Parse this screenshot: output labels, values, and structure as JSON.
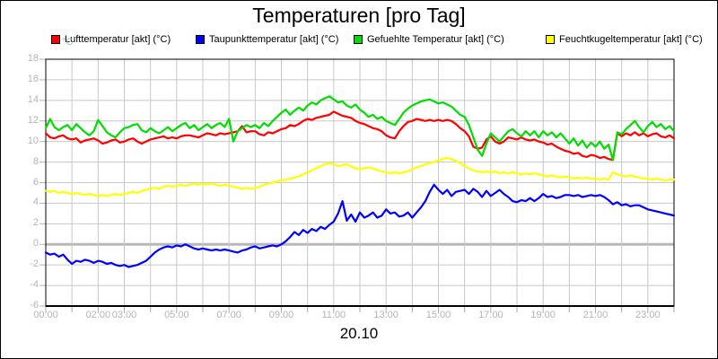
{
  "title": "Temperaturen [pro Tag]",
  "unit_label": "°C",
  "date_label": "20.10",
  "legend": {
    "items": [
      {
        "label": "Lufttemperatur [akt] (°C)",
        "color": "#ff0000"
      },
      {
        "label": "Taupunkttemperatur [akt] (°C)",
        "color": "#0000ff"
      },
      {
        "label": "Gefuehlte Temperatur [akt] (°C)",
        "color": "#00dd00"
      },
      {
        "label": "Feuchtkugeltemperatur [akt] (°C)",
        "color": "#ffff00"
      }
    ]
  },
  "axes": {
    "y_ticks": [
      18,
      16,
      14,
      12,
      10,
      8,
      6,
      4,
      2,
      0,
      -2,
      -4,
      -6
    ],
    "x_ticks": [
      {
        "hour": 0,
        "label": "00:00"
      },
      {
        "hour": 2,
        "label": "02:00"
      },
      {
        "hour": 3,
        "label": "03:00"
      },
      {
        "hour": 5,
        "label": "05:00"
      },
      {
        "hour": 7,
        "label": "07:00"
      },
      {
        "hour": 9,
        "label": "09:00"
      },
      {
        "hour": 11,
        "label": "11:00"
      },
      {
        "hour": 13,
        "label": "13:00"
      },
      {
        "hour": 15,
        "label": "15:00"
      },
      {
        "hour": 17,
        "label": "17:00"
      },
      {
        "hour": 19,
        "label": "19:00"
      },
      {
        "hour": 21,
        "label": "21:00"
      },
      {
        "hour": 23,
        "label": "23:00"
      }
    ]
  },
  "colors": {
    "grid": "#c8c8c8",
    "zero_line": "#b8b8b8",
    "axis_text": "#b4b4b4",
    "tick": "#a8a8a8",
    "border": "#000000"
  },
  "chart_data": {
    "type": "line",
    "title": "Temperaturen [pro Tag]",
    "xlabel": "20.10",
    "ylabel": "°C",
    "x_unit": "hour of day",
    "x_start_hour": 0,
    "x_step_minutes": 10,
    "xlim_hours": [
      0,
      24
    ],
    "ylim": [
      -6,
      18
    ],
    "grid": true,
    "legend_position": "top",
    "series": [
      {
        "name": "Lufttemperatur [akt] (°C)",
        "color": "#ff0000",
        "values": [
          10.8,
          10.4,
          10.3,
          10.5,
          10.6,
          10.3,
          10.2,
          10.3,
          9.9,
          10.1,
          10.2,
          10.3,
          10.1,
          9.8,
          9.9,
          10.1,
          10.2,
          9.9,
          10.0,
          10.2,
          10.3,
          10.0,
          9.8,
          10.0,
          10.2,
          10.3,
          10.4,
          10.5,
          10.3,
          10.4,
          10.3,
          10.5,
          10.6,
          10.6,
          10.5,
          10.4,
          10.6,
          10.8,
          10.7,
          10.6,
          10.8,
          10.7,
          10.8,
          10.9,
          11.0,
          11.5,
          10.9,
          11.0,
          11.0,
          10.7,
          10.6,
          10.9,
          10.8,
          11.0,
          11.2,
          11.3,
          11.6,
          11.5,
          11.7,
          12.0,
          12.2,
          12.1,
          12.3,
          12.4,
          12.5,
          12.6,
          12.9,
          12.7,
          12.5,
          12.4,
          12.3,
          12.0,
          11.8,
          11.7,
          11.5,
          11.3,
          11.2,
          11.0,
          10.6,
          10.4,
          10.3,
          11.0,
          11.5,
          11.9,
          12.0,
          12.2,
          12.1,
          12.0,
          12.1,
          12.0,
          12.1,
          12.0,
          12.1,
          12.0,
          11.7,
          11.3,
          11.0,
          10.5,
          9.5,
          9.3,
          9.4,
          10.2,
          10.5,
          10.0,
          9.8,
          10.0,
          10.4,
          10.3,
          10.2,
          10.4,
          10.2,
          10.1,
          10.2,
          10.0,
          9.9,
          9.7,
          9.8,
          9.5,
          9.3,
          9.1,
          9.0,
          8.8,
          8.9,
          8.6,
          8.5,
          8.7,
          8.6,
          8.4,
          8.5,
          8.3,
          8.2,
          10.8,
          10.5,
          10.8,
          10.6,
          10.9,
          10.6,
          10.8,
          10.5,
          10.7,
          10.8,
          10.5,
          10.4,
          10.6,
          10.3
        ]
      },
      {
        "name": "Taupunkttemperatur [akt] (°C)",
        "color": "#0000ff",
        "values": [
          -0.8,
          -1.0,
          -0.9,
          -1.2,
          -1.0,
          -1.5,
          -1.9,
          -1.6,
          -1.7,
          -1.5,
          -1.6,
          -1.8,
          -1.6,
          -1.7,
          -1.9,
          -1.8,
          -2.0,
          -2.1,
          -2.0,
          -2.2,
          -2.1,
          -2.0,
          -1.8,
          -1.6,
          -1.2,
          -0.8,
          -0.5,
          -0.3,
          -0.2,
          -0.3,
          -0.1,
          -0.2,
          0.0,
          -0.2,
          -0.4,
          -0.5,
          -0.4,
          -0.5,
          -0.6,
          -0.5,
          -0.6,
          -0.5,
          -0.6,
          -0.7,
          -0.8,
          -0.6,
          -0.5,
          -0.3,
          -0.2,
          -0.4,
          -0.3,
          -0.2,
          -0.1,
          -0.2,
          0.0,
          0.3,
          0.7,
          1.2,
          0.9,
          1.4,
          1.1,
          1.5,
          1.3,
          1.7,
          1.5,
          1.9,
          2.2,
          3.0,
          4.2,
          2.3,
          2.9,
          2.2,
          3.1,
          2.6,
          2.8,
          3.1,
          2.6,
          2.8,
          3.4,
          3.0,
          3.1,
          2.7,
          2.8,
          3.1,
          2.6,
          3.1,
          3.6,
          4.2,
          5.1,
          5.8,
          5.3,
          4.9,
          5.3,
          4.7,
          5.1,
          5.2,
          5.3,
          4.9,
          5.4,
          5.1,
          4.6,
          5.2,
          4.7,
          5.0,
          5.3,
          4.9,
          4.6,
          4.2,
          4.1,
          4.3,
          4.2,
          4.5,
          4.2,
          4.5,
          4.9,
          4.6,
          4.7,
          4.5,
          4.6,
          4.8,
          4.8,
          4.7,
          4.8,
          4.6,
          4.7,
          4.8,
          4.7,
          4.8,
          4.6,
          4.3,
          3.9,
          4.1,
          3.8,
          3.9,
          3.7,
          3.8,
          3.8,
          3.6,
          3.4,
          3.3,
          3.2,
          3.1,
          3.0,
          2.9,
          2.8
        ]
      },
      {
        "name": "Gefuehlte Temperatur [akt] (°C)",
        "color": "#00dd00",
        "values": [
          11.3,
          12.2,
          11.4,
          11.1,
          11.4,
          11.6,
          11.1,
          11.7,
          11.3,
          10.9,
          10.6,
          11.0,
          12.1,
          11.5,
          10.9,
          10.6,
          10.4,
          10.9,
          11.3,
          11.4,
          11.6,
          11.7,
          11.1,
          10.9,
          11.3,
          11.0,
          10.8,
          11.1,
          11.4,
          11.0,
          11.3,
          11.6,
          11.8,
          11.3,
          11.6,
          11.1,
          11.4,
          11.7,
          11.3,
          11.6,
          11.8,
          11.4,
          12.2,
          10.0,
          11.0,
          11.3,
          11.6,
          11.4,
          11.6,
          11.3,
          11.8,
          11.5,
          12.0,
          12.4,
          12.8,
          13.1,
          12.6,
          13.0,
          13.3,
          13.0,
          13.5,
          13.8,
          13.6,
          14.0,
          14.2,
          14.4,
          14.1,
          13.8,
          13.9,
          13.5,
          13.3,
          13.6,
          13.1,
          12.8,
          12.4,
          12.6,
          12.2,
          12.4,
          12.0,
          11.8,
          11.6,
          12.2,
          12.8,
          13.2,
          13.5,
          13.7,
          13.9,
          14.0,
          14.1,
          13.9,
          13.7,
          13.8,
          13.6,
          13.4,
          13.0,
          12.6,
          12.4,
          11.6,
          10.4,
          9.2,
          8.6,
          9.8,
          10.8,
          10.4,
          10.0,
          10.5,
          11.0,
          11.2,
          10.8,
          10.5,
          11.0,
          10.6,
          11.0,
          10.4,
          11.0,
          10.6,
          10.9,
          10.4,
          10.8,
          10.3,
          9.8,
          10.3,
          9.6,
          10.1,
          9.4,
          9.9,
          9.5,
          10.0,
          9.3,
          9.7,
          8.2,
          10.9,
          10.7,
          11.2,
          11.6,
          12.0,
          11.4,
          10.9,
          11.5,
          11.9,
          11.4,
          11.7,
          11.2,
          11.5,
          11.0
        ]
      },
      {
        "name": "Feuchtkugeltemperatur [akt] (°C)",
        "color": "#ffff00",
        "values": [
          5.2,
          5.1,
          5.2,
          5.0,
          5.1,
          5.0,
          4.9,
          5.0,
          4.9,
          4.8,
          4.9,
          4.8,
          4.7,
          4.8,
          4.7,
          4.8,
          4.9,
          4.8,
          4.9,
          5.0,
          5.1,
          5.0,
          5.2,
          5.3,
          5.4,
          5.5,
          5.4,
          5.6,
          5.7,
          5.6,
          5.7,
          5.8,
          5.7,
          5.8,
          5.9,
          5.8,
          5.9,
          5.8,
          5.9,
          5.8,
          5.7,
          5.8,
          5.7,
          5.6,
          5.5,
          5.4,
          5.5,
          5.4,
          5.5,
          5.6,
          5.8,
          5.9,
          6.0,
          6.1,
          6.2,
          6.3,
          6.4,
          6.5,
          6.6,
          6.8,
          7.0,
          7.2,
          7.4,
          7.6,
          7.8,
          7.9,
          7.8,
          7.6,
          7.7,
          7.8,
          7.6,
          7.4,
          7.3,
          7.4,
          7.5,
          7.4,
          7.2,
          7.1,
          7.0,
          6.9,
          7.0,
          6.9,
          7.0,
          7.1,
          7.3,
          7.5,
          7.6,
          7.8,
          7.9,
          8.0,
          8.2,
          8.3,
          8.4,
          8.3,
          8.1,
          7.9,
          7.6,
          7.4,
          7.2,
          7.1,
          7.0,
          7.1,
          7.0,
          7.1,
          6.9,
          7.0,
          6.9,
          7.0,
          6.9,
          6.8,
          6.9,
          6.8,
          6.9,
          6.8,
          6.7,
          6.6,
          6.7,
          6.6,
          6.5,
          6.6,
          6.5,
          6.4,
          6.5,
          6.4,
          6.5,
          6.4,
          6.4,
          6.3,
          6.4,
          6.3,
          7.0,
          6.8,
          6.7,
          6.6,
          6.7,
          6.6,
          6.5,
          6.4,
          6.4,
          6.3,
          6.4,
          6.3,
          6.2,
          6.3,
          6.3
        ]
      }
    ]
  }
}
